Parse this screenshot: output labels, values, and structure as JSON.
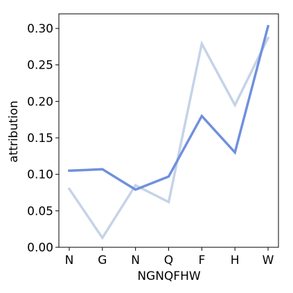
{
  "chart_data": {
    "type": "line",
    "xlabel": "NGNQFHW",
    "ylabel": "attribution",
    "categories": [
      "N",
      "G",
      "N",
      "Q",
      "F",
      "H",
      "W"
    ],
    "ylim": [
      0,
      0.32
    ],
    "yticks": [
      0.0,
      0.05,
      0.1,
      0.15,
      0.2,
      0.25,
      0.3
    ],
    "ytick_labels": [
      "0.00",
      "0.05",
      "0.10",
      "0.15",
      "0.20",
      "0.25",
      "0.30"
    ],
    "grid": false,
    "legend": "none",
    "series": [
      {
        "values": [
          0.08,
          0.013,
          0.085,
          0.062,
          0.279,
          0.195,
          0.287
        ],
        "color": "#c5d3e8",
        "line_width": 3.5
      },
      {
        "values": [
          0.105,
          0.107,
          0.079,
          0.097,
          0.18,
          0.13,
          0.303
        ],
        "color": "#7090dd",
        "line_width": 3.5
      }
    ]
  }
}
